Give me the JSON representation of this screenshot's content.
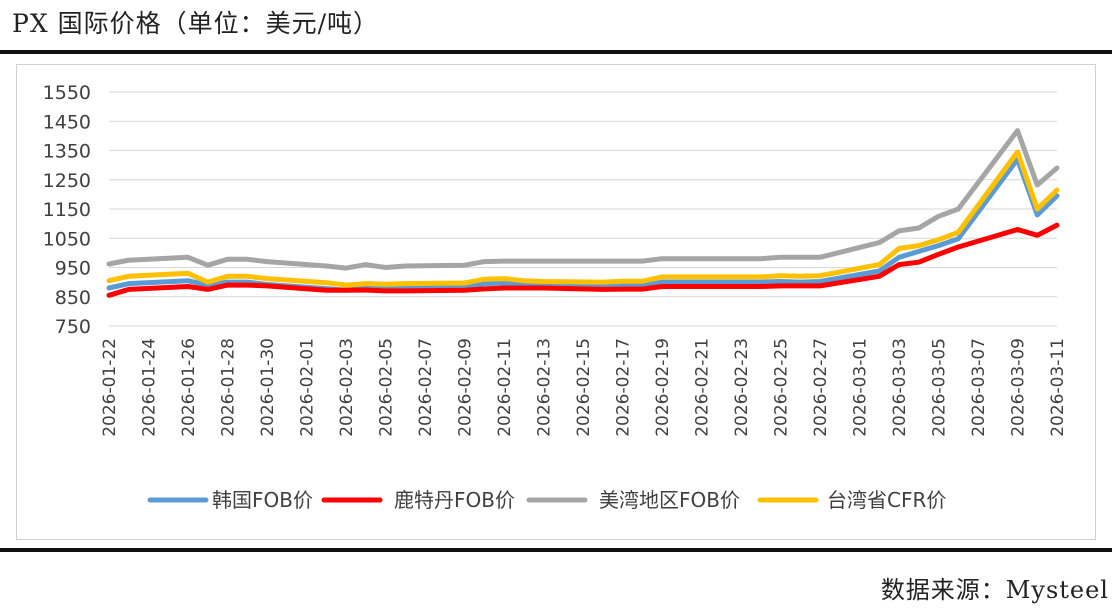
{
  "header": {
    "title": "PX 国际价格（单位：美元/吨）"
  },
  "footer": {
    "source": "数据来源：Mysteel"
  },
  "chart_data": {
    "type": "line",
    "title": "",
    "xlabel": "",
    "ylabel": "",
    "ylim": [
      750,
      1550
    ],
    "yticks": [
      750,
      850,
      950,
      1050,
      1150,
      1250,
      1350,
      1450,
      1550
    ],
    "grid": "horizontal",
    "legend": "bottom",
    "x": [
      "2026-01-22",
      "2026-01-23",
      "2026-01-26",
      "2026-01-27",
      "2026-01-28",
      "2026-01-29",
      "2026-01-30",
      "2026-02-02",
      "2026-02-03",
      "2026-02-04",
      "2026-02-05",
      "2026-02-06",
      "2026-02-09",
      "2026-02-10",
      "2026-02-11",
      "2026-02-12",
      "2026-02-13",
      "2026-02-16",
      "2026-02-17",
      "2026-02-18",
      "2026-02-19",
      "2026-02-20",
      "2026-02-23",
      "2026-02-24",
      "2026-02-25",
      "2026-02-26",
      "2026-02-27",
      "2026-03-02",
      "2026-03-03",
      "2026-03-04",
      "2026-03-05",
      "2026-03-06",
      "2026-03-09",
      "2026-03-10",
      "2026-03-11"
    ],
    "x_tick_labels": [
      "2026-01-22",
      "2026-01-24",
      "2026-01-26",
      "2026-01-28",
      "2026-01-30",
      "2026-02-01",
      "2026-02-03",
      "2026-02-05",
      "2026-02-07",
      "2026-02-09",
      "2026-02-11",
      "2026-02-13",
      "2026-02-15",
      "2026-02-17",
      "2026-02-19",
      "2026-02-21",
      "2026-02-23",
      "2026-02-25",
      "2026-02-27",
      "2026-03-01",
      "2026-03-03",
      "2026-03-05",
      "2026-03-07",
      "2026-03-09",
      "2026-03-11"
    ],
    "series": [
      {
        "name": "韩国FOB价",
        "color": "#5b9bd5",
        "values": [
          880,
          895,
          905,
          890,
          900,
          900,
          892,
          878,
          872,
          880,
          878,
          880,
          880,
          895,
          897,
          890,
          888,
          885,
          887,
          887,
          900,
          900,
          900,
          900,
          902,
          900,
          902,
          938,
          985,
          1005,
          1025,
          1048,
          1320,
          1130,
          1195
        ]
      },
      {
        "name": "鹿特丹FOB价",
        "color": "#ff0000",
        "values": [
          855,
          875,
          885,
          875,
          890,
          890,
          887,
          872,
          872,
          873,
          870,
          870,
          872,
          877,
          880,
          880,
          880,
          875,
          876,
          876,
          885,
          885,
          885,
          885,
          887,
          887,
          887,
          920,
          960,
          968,
          995,
          1020,
          1080,
          1060,
          1095
        ]
      },
      {
        "name": "美湾地区FOB价",
        "color": "#a5a5a5",
        "values": [
          962,
          975,
          985,
          958,
          978,
          978,
          970,
          955,
          948,
          960,
          950,
          955,
          958,
          970,
          972,
          972,
          972,
          972,
          972,
          972,
          980,
          980,
          980,
          980,
          985,
          985,
          985,
          1035,
          1075,
          1085,
          1125,
          1150,
          1418,
          1232,
          1290
        ]
      },
      {
        "name": "台湾省CFR价",
        "color": "#ffc000",
        "values": [
          905,
          920,
          930,
          900,
          920,
          920,
          912,
          898,
          890,
          895,
          893,
          895,
          897,
          910,
          912,
          905,
          902,
          900,
          903,
          903,
          918,
          918,
          918,
          918,
          922,
          920,
          922,
          960,
          1015,
          1025,
          1045,
          1070,
          1345,
          1150,
          1215
        ]
      }
    ]
  }
}
